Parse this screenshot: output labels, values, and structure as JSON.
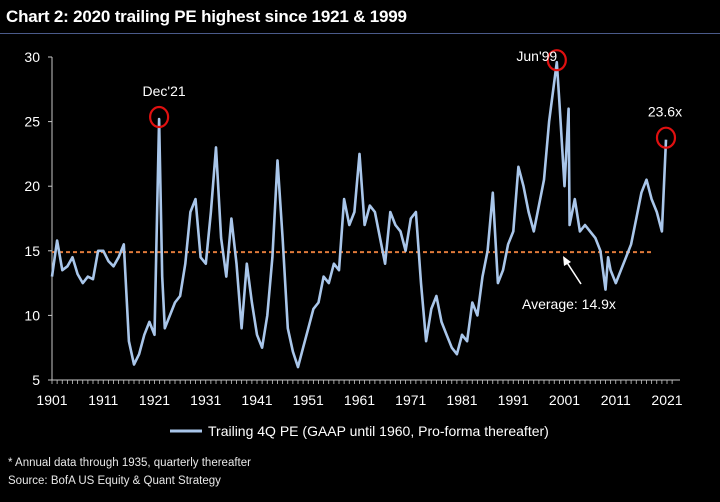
{
  "title": "Chart 2: 2020 trailing PE highest since 1921 & 1999",
  "footnotes": {
    "note": "* Annual data through 1935, quarterly thereafter",
    "source": " Source: BofA US Equity & Quant Strategy"
  },
  "colors": {
    "background": "#000000",
    "series": "#a9c6ea",
    "average_line": "#e07a3a",
    "highlight_circle": "#e01010",
    "axis": "#c8c8c8"
  },
  "chart_data": {
    "type": "line",
    "title": "Chart 2: 2020 trailing PE highest since 1921 & 1999",
    "xlabel": "",
    "ylabel": "",
    "xlim": [
      1901,
      2022
    ],
    "ylim": [
      5,
      30
    ],
    "x_ticks": [
      1901,
      1911,
      1921,
      1931,
      1941,
      1951,
      1961,
      1971,
      1981,
      1991,
      2001,
      2011,
      2021
    ],
    "y_ticks": [
      5,
      10,
      15,
      20,
      25,
      30
    ],
    "grid": false,
    "legend": "bottom",
    "average": {
      "value": 14.9,
      "label": "Average: 14.9x"
    },
    "annotations": [
      {
        "label": "Dec'21",
        "x": 1921.9,
        "y": 25.2
      },
      {
        "label": "Jun'99",
        "x": 1999.5,
        "y": 29.6
      },
      {
        "label": "23.6x",
        "x": 2020.8,
        "y": 23.6
      }
    ],
    "series": [
      {
        "name": "Trailing 4Q PE (GAAP until 1960, Pro-forma thereafter)",
        "x": [
          1901,
          1902,
          1903,
          1904,
          1905,
          1906,
          1907,
          1908,
          1909,
          1910,
          1911,
          1912,
          1913,
          1914,
          1915,
          1916,
          1917,
          1918,
          1919,
          1920,
          1921,
          1921.9,
          1922.5,
          1923,
          1924,
          1925,
          1926,
          1927,
          1928,
          1929,
          1930,
          1931,
          1932,
          1933,
          1934,
          1935,
          1936,
          1937,
          1938,
          1939,
          1940,
          1941,
          1942,
          1943,
          1944,
          1945,
          1946,
          1947,
          1948,
          1949,
          1950,
          1951,
          1952,
          1953,
          1954,
          1955,
          1956,
          1957,
          1958,
          1959,
          1960,
          1961,
          1962,
          1963,
          1964,
          1965,
          1966,
          1967,
          1968,
          1969,
          1970,
          1971,
          1972,
          1973,
          1974,
          1975,
          1976,
          1977,
          1978,
          1979,
          1980,
          1981,
          1982,
          1983,
          1984,
          1985,
          1986,
          1987,
          1988,
          1989,
          1990,
          1991,
          1992,
          1993,
          1994,
          1995,
          1996,
          1997,
          1998,
          1999.5,
          2000,
          2001,
          2001.8,
          2002,
          2003,
          2004,
          2005,
          2006,
          2007,
          2008,
          2009,
          2009.5,
          2010,
          2011,
          2012,
          2013,
          2014,
          2015,
          2016,
          2017,
          2018,
          2019,
          2020,
          2020.8
        ],
        "values": [
          13.0,
          15.8,
          13.5,
          13.8,
          14.5,
          13.2,
          12.5,
          13.0,
          12.8,
          15.0,
          15.0,
          14.2,
          13.8,
          14.5,
          15.5,
          8.0,
          6.2,
          7.0,
          8.5,
          9.5,
          8.5,
          25.2,
          13.0,
          9.0,
          10.0,
          11.0,
          11.5,
          14.0,
          18.0,
          19.0,
          14.5,
          14.0,
          18.0,
          23.0,
          16.0,
          13.0,
          17.5,
          14.0,
          9.0,
          14.0,
          11.0,
          8.5,
          7.5,
          10.0,
          14.5,
          22.0,
          16.0,
          9.0,
          7.2,
          6.0,
          7.5,
          9.0,
          10.5,
          11.0,
          13.0,
          12.5,
          14.0,
          13.5,
          19.0,
          17.0,
          18.0,
          22.5,
          17.0,
          18.5,
          18.0,
          16.0,
          14.0,
          18.0,
          17.0,
          16.5,
          15.0,
          17.5,
          18.0,
          12.5,
          8.0,
          10.5,
          11.5,
          9.5,
          8.5,
          7.5,
          7.0,
          8.5,
          8.0,
          11.0,
          10.0,
          13.0,
          15.0,
          19.5,
          12.5,
          13.5,
          15.5,
          16.5,
          21.5,
          20.0,
          18.0,
          16.5,
          18.5,
          20.5,
          25.0,
          29.6,
          26.5,
          20.0,
          26.0,
          17.0,
          19.0,
          16.5,
          17.0,
          16.5,
          16.0,
          15.0,
          12.0,
          14.5,
          13.5,
          12.5,
          13.5,
          14.5,
          15.5,
          17.5,
          19.5,
          20.5,
          19.0,
          18.0,
          16.5,
          23.6
        ]
      }
    ]
  }
}
